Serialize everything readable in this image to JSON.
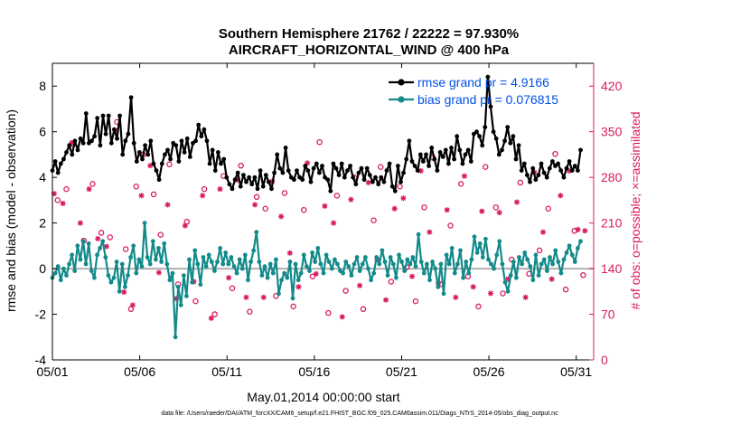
{
  "colors": {
    "rmse": "#000000",
    "bias": "#138a8a",
    "obs": "#d81b60",
    "legend_text": "#0050e6",
    "zero_line": "#b0b0b0"
  },
  "chart_data": {
    "type": "line",
    "title": "Southern Hemisphere 21762 / 22222 = 97.930%",
    "subtitle": "AIRCRAFT_HORIZONTAL_WIND @ 400 hPa",
    "xlabel": "May.01,2014 00:00:00 start",
    "ylabel_left": "rmse and bias (model - observation)",
    "ylabel_right": "# of obs: o=possible; ×=assimilated",
    "x_ticks": [
      "05/01",
      "05/06",
      "05/11",
      "05/16",
      "05/21",
      "05/26",
      "05/31"
    ],
    "x_tick_days": [
      1,
      6,
      11,
      16,
      21,
      26,
      31
    ],
    "xlim": [
      1,
      32
    ],
    "ylim_left": [
      -4,
      9
    ],
    "y_ticks_left": [
      "-4",
      "-2",
      "0",
      "2",
      "4",
      "6",
      "8"
    ],
    "ylim_right": [
      0,
      455
    ],
    "y_ticks_right": [
      "0",
      "70",
      "140",
      "210",
      "280",
      "350",
      "420"
    ],
    "zero_line": 0,
    "legend_position": "top-right",
    "series": [
      {
        "name": "rmse grand pr = 4.9166",
        "axis": "left",
        "marker": "dot",
        "values": [
          4.3,
          4.7,
          4.2,
          4.6,
          4.8,
          5.1,
          5.4,
          5.0,
          5.6,
          5.2,
          5.7,
          5.5,
          6.8,
          5.5,
          5.6,
          5.8,
          6.6,
          5.4,
          6.7,
          5.9,
          6.7,
          5.5,
          6.1,
          5.7,
          6.7,
          5.0,
          5.6,
          5.9,
          7.5,
          5.5,
          4.7,
          5.1,
          4.8,
          5.4,
          5.0,
          5.6,
          4.6,
          4.3,
          3.9,
          4.6,
          5.0,
          5.2,
          4.8,
          5.5,
          5.4,
          4.7,
          5.6,
          5.1,
          5.7,
          4.9,
          5.5,
          5.6,
          6.3,
          5.8,
          6.1,
          5.6,
          4.6,
          5.2,
          4.3,
          5.1,
          4.6,
          4.8,
          4.0,
          3.7,
          3.5,
          3.9,
          4.2,
          3.6,
          4.1,
          3.8,
          4.0,
          3.7,
          4.0,
          3.5,
          4.3,
          3.6,
          4.1,
          3.8,
          3.5,
          4.2,
          5.0,
          4.4,
          4.2,
          5.3,
          4.3,
          4.0,
          3.9,
          4.3,
          4.0,
          3.9,
          4.5,
          4.3,
          3.8,
          4.4,
          4.6,
          4.2,
          4.5,
          4.0,
          3.9,
          3.4,
          4.6,
          4.4,
          4.1,
          4.6,
          4.0,
          4.3,
          4.5,
          4.0,
          3.7,
          4.2,
          4.4,
          3.9,
          4.4,
          4.1,
          3.8,
          4.0,
          3.7,
          4.0,
          3.8,
          4.3,
          4.6,
          3.6,
          3.4,
          4.5,
          3.8,
          4.2,
          4.8,
          5.6,
          4.7,
          4.5,
          4.3,
          5.0,
          4.7,
          5.0,
          4.5,
          5.3,
          4.8,
          4.3,
          5.1,
          4.9,
          5.2,
          4.6,
          5.3,
          4.8,
          5.8,
          5.2,
          4.6,
          5.0,
          5.2,
          4.7,
          5.9,
          6.0,
          5.8,
          5.4,
          6.2,
          8.4,
          7.1,
          6.0,
          5.7,
          5.0,
          5.2,
          5.6,
          6.2,
          5.5,
          5.8,
          4.8,
          5.4,
          4.3,
          4.6,
          4.1,
          3.8,
          4.4,
          3.9,
          4.1,
          4.6,
          4.2,
          4.0,
          4.4,
          4.7,
          4.5,
          4.6,
          4.3,
          4.0,
          4.4,
          4.7,
          4.3,
          4.5,
          4.3,
          5.2
        ],
        "grand_value": 4.9166
      },
      {
        "name": "bias grand pr = 0.076815",
        "axis": "left",
        "marker": "dot",
        "values": [
          -0.4,
          -0.2,
          0.1,
          -0.5,
          0.0,
          -0.3,
          0.2,
          0.6,
          -0.1,
          1.0,
          0.4,
          1.2,
          0.2,
          1.1,
          -0.1,
          -0.4,
          0.6,
          0.9,
          1.2,
          0.5,
          -0.3,
          -0.6,
          -0.4,
          0.3,
          -1.0,
          0.2,
          -0.8,
          -0.3,
          0.5,
          1.0,
          -0.2,
          0.4,
          0.1,
          2.0,
          0.5,
          0.2,
          1.2,
          0.4,
          0.9,
          0.3,
          1.1,
          0.2,
          -0.5,
          -0.2,
          -3.0,
          -0.8,
          -1.6,
          -0.3,
          -1.2,
          0.4,
          -0.6,
          0.8,
          0.2,
          -0.7,
          0.5,
          0.1,
          0.6,
          0.3,
          -0.1,
          0.3,
          0.9,
          0.2,
          0.7,
          0.2,
          0.5,
          0.1,
          -0.2,
          0.4,
          0.0,
          0.6,
          -0.5,
          0.3,
          0.8,
          1.6,
          0.3,
          -0.3,
          0.1,
          -0.4,
          0.2,
          -0.2,
          0.4,
          -1.1,
          -0.5,
          -0.2,
          -0.4,
          0.3,
          -1.3,
          0.2,
          -0.5,
          -0.2,
          0.6,
          0.1,
          -0.1,
          0.7,
          0.3,
          0.9,
          0.2,
          -0.2,
          0.6,
          0.3,
          0.0,
          0.4,
          0.2,
          -0.1,
          -0.2,
          0.3,
          0.1,
          -0.3,
          0.2,
          0.5,
          -0.1,
          0.2,
          0.5,
          0.0,
          -0.5,
          -0.2,
          0.5,
          0.2,
          0.8,
          0.3,
          -0.3,
          0.5,
          0.2,
          -0.4,
          0.6,
          0.3,
          -0.1,
          0.4,
          0.2,
          0.5,
          0.1,
          1.5,
          0.3,
          -0.2,
          0.2,
          -0.5,
          0.3,
          0.0,
          -0.8,
          0.2,
          -1.1,
          0.6,
          0.2,
          0.9,
          -0.2,
          0.2,
          0.8,
          -0.4,
          0.3,
          -0.2,
          0.4,
          1.4,
          0.7,
          1.1,
          0.5,
          1.3,
          0.4,
          0.2,
          0.0,
          0.6,
          1.2,
          0.2,
          -0.6,
          -1.0,
          -0.3,
          0.3,
          -0.4,
          0.5,
          0.2,
          0.7,
          0.4,
          0.1,
          -0.5,
          0.6,
          -0.3,
          0.2,
          0.4,
          -0.1,
          0.5,
          0.2,
          0.8,
          0.3,
          -0.2,
          0.4,
          0.7,
          1.0,
          0.6,
          0.3,
          0.9,
          1.2
        ]
      },
      {
        "name": "obs possible",
        "axis": "right",
        "marker": "o",
        "points": [
          [
            1.3,
            245
          ],
          [
            1.8,
            262
          ],
          [
            2.2,
            331
          ],
          [
            2.8,
            183
          ],
          [
            3.3,
            270
          ],
          [
            3.8,
            195
          ],
          [
            4.3,
            188
          ],
          [
            4.7,
            365
          ],
          [
            5.2,
            170
          ],
          [
            5.5,
            78
          ],
          [
            5.8,
            266
          ],
          [
            6.2,
            315
          ],
          [
            6.8,
            254
          ],
          [
            7.2,
            192
          ],
          [
            7.7,
            300
          ],
          [
            8.2,
            116
          ],
          [
            8.7,
            212
          ],
          [
            9.2,
            90
          ],
          [
            9.7,
            262
          ],
          [
            10.3,
            70
          ],
          [
            10.8,
            282
          ],
          [
            11.3,
            110
          ],
          [
            11.8,
            298
          ],
          [
            12.3,
            74
          ],
          [
            12.7,
            250
          ],
          [
            13.2,
            232
          ],
          [
            13.8,
            98
          ],
          [
            14.3,
            256
          ],
          [
            14.8,
            82
          ],
          [
            15.4,
            230
          ],
          [
            15.9,
            128
          ],
          [
            16.3,
            334
          ],
          [
            16.8,
            72
          ],
          [
            17.3,
            252
          ],
          [
            17.8,
            106
          ],
          [
            18.3,
            280
          ],
          [
            18.8,
            78
          ],
          [
            19.4,
            214
          ],
          [
            19.8,
            296
          ],
          [
            20.4,
            120
          ],
          [
            20.9,
            266
          ],
          [
            21.3,
            142
          ],
          [
            21.8,
            90
          ],
          [
            22.3,
            234
          ],
          [
            22.8,
            310
          ],
          [
            23.3,
            116
          ],
          [
            23.8,
            206
          ],
          [
            24.4,
            270
          ],
          [
            24.8,
            128
          ],
          [
            25.4,
            82
          ],
          [
            25.8,
            296
          ],
          [
            26.4,
            234
          ],
          [
            26.8,
            102
          ],
          [
            27.3,
            154
          ],
          [
            27.8,
            272
          ],
          [
            28.3,
            132
          ],
          [
            28.9,
            168
          ],
          [
            29.4,
            232
          ],
          [
            29.8,
            316
          ],
          [
            30.4,
            108
          ],
          [
            30.9,
            198
          ],
          [
            31.4,
            130
          ]
        ]
      },
      {
        "name": "obs assimilated",
        "axis": "right",
        "marker": "x",
        "points": [
          [
            1.1,
            255
          ],
          [
            1.6,
            240
          ],
          [
            2.1,
            333
          ],
          [
            2.6,
            210
          ],
          [
            3.1,
            262
          ],
          [
            3.6,
            186
          ],
          [
            4.1,
            174
          ],
          [
            4.6,
            352
          ],
          [
            5.1,
            104
          ],
          [
            5.6,
            84
          ],
          [
            6.1,
            252
          ],
          [
            6.6,
            298
          ],
          [
            7.1,
            134
          ],
          [
            7.6,
            238
          ],
          [
            8.1,
            94
          ],
          [
            8.6,
            206
          ],
          [
            9.1,
            120
          ],
          [
            9.6,
            252
          ],
          [
            10.1,
            64
          ],
          [
            10.6,
            262
          ],
          [
            11.1,
            126
          ],
          [
            11.6,
            276
          ],
          [
            12.1,
            96
          ],
          [
            12.6,
            238
          ],
          [
            13.1,
            96
          ],
          [
            13.6,
            274
          ],
          [
            14.1,
            220
          ],
          [
            14.6,
            164
          ],
          [
            15.1,
            112
          ],
          [
            15.6,
            302
          ],
          [
            16.1,
            132
          ],
          [
            16.6,
            236
          ],
          [
            17.1,
            210
          ],
          [
            17.6,
            66
          ],
          [
            18.1,
            246
          ],
          [
            18.6,
            114
          ],
          [
            19.1,
            272
          ],
          [
            19.6,
            154
          ],
          [
            20.1,
            92
          ],
          [
            20.6,
            232
          ],
          [
            21.1,
            248
          ],
          [
            21.6,
            128
          ],
          [
            22.1,
            290
          ],
          [
            22.6,
            196
          ],
          [
            23.1,
            118
          ],
          [
            23.6,
            230
          ],
          [
            24.1,
            96
          ],
          [
            24.6,
            282
          ],
          [
            25.1,
            112
          ],
          [
            25.6,
            228
          ],
          [
            26.1,
            102
          ],
          [
            26.6,
            226
          ],
          [
            27.1,
            124
          ],
          [
            27.6,
            242
          ],
          [
            28.1,
            96
          ],
          [
            28.6,
            288
          ],
          [
            29.1,
            196
          ],
          [
            29.6,
            124
          ],
          [
            30.1,
            252
          ],
          [
            30.6,
            290
          ],
          [
            31.1,
            200
          ],
          [
            31.5,
            198
          ]
        ]
      }
    ]
  },
  "footer": {
    "data_file": "data file: /Users/raeder/DAI/ATM_forcXX/CAM6_setup/f.e21.FHIST_BGC.f09_025.CAM6assim.011/Diags_NTrS_2014-05/obs_diag_output.nc"
  }
}
